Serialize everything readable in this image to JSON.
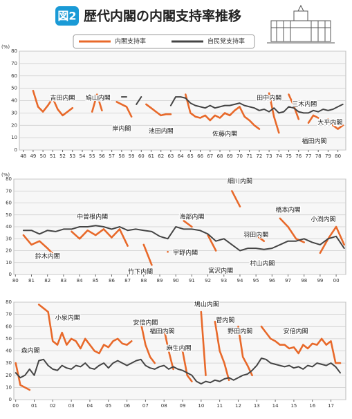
{
  "badge": "図2",
  "title": "歴代内閣の内閣支持率推移",
  "chart_data": [
    {
      "type": "line",
      "ylabel": "(%)",
      "xlim": [
        47.6,
        80.8
      ],
      "ylim": [
        0,
        80
      ],
      "yticks": [
        0,
        10,
        20,
        30,
        40,
        50,
        60,
        70,
        80
      ],
      "xticks": [
        48,
        49,
        50,
        51,
        52,
        53,
        54,
        55,
        56,
        57,
        58,
        59,
        60,
        61,
        62,
        63,
        64,
        65,
        66,
        67,
        68,
        69,
        70,
        71,
        72,
        73,
        74,
        75,
        76,
        77,
        78,
        79,
        80
      ],
      "grid": true,
      "x": [
        48.5,
        49,
        49.5,
        50,
        50.5,
        51,
        51.5,
        52,
        52.5,
        53,
        53.5,
        54,
        54.5,
        55,
        55.5,
        56,
        56.5,
        57,
        57.5,
        58,
        58.5,
        59,
        59.5,
        60,
        60.5,
        61,
        61.5,
        62,
        62.5,
        63,
        63.5,
        64,
        64.5,
        65,
        65.5,
        66,
        66.5,
        67,
        67.5,
        68,
        68.5,
        69,
        69.5,
        70,
        70.5,
        71,
        71.5,
        72,
        72.5,
        73,
        73.5,
        74,
        74.5,
        75,
        75.5,
        76,
        76.5,
        77,
        77.5,
        78,
        78.5,
        79,
        79.5,
        80,
        80.5
      ],
      "series": [
        {
          "name": "内閣支持率",
          "color": "#e8692a",
          "values": [
            null,
            48,
            35,
            31,
            36,
            42,
            33,
            28,
            31,
            34,
            null,
            null,
            null,
            31,
            45,
            32,
            null,
            null,
            39,
            37,
            35,
            27,
            null,
            null,
            37,
            34,
            31,
            28,
            29,
            29,
            null,
            null,
            45,
            30,
            27,
            26,
            28,
            24,
            28,
            26,
            30,
            28,
            32,
            35,
            27,
            24,
            20,
            17,
            null,
            46,
            27,
            14,
            null,
            45,
            36,
            25,
            null,
            22,
            28,
            26,
            null,
            25,
            20,
            17,
            20
          ]
        },
        {
          "name": "自民党支持率",
          "color": "#444444",
          "values": [
            null,
            null,
            null,
            null,
            null,
            null,
            null,
            null,
            null,
            null,
            null,
            null,
            null,
            null,
            null,
            null,
            null,
            null,
            null,
            43,
            43,
            null,
            37,
            43,
            null,
            null,
            null,
            null,
            null,
            36,
            43,
            43,
            42,
            38,
            36,
            35,
            34,
            36,
            34,
            35,
            36,
            36,
            37,
            38,
            36,
            35,
            34,
            32,
            33,
            31,
            34,
            30,
            31,
            35,
            34,
            31,
            30,
            30,
            32,
            31,
            33,
            32,
            33,
            35,
            37
          ]
        }
      ],
      "annotations": [
        {
          "text": "吉田内閣",
          "x": 52,
          "y": 42
        },
        {
          "text": "鳩山内閣",
          "x": 55.6,
          "y": 42
        },
        {
          "text": "岸内閣",
          "x": 58,
          "y": 17
        },
        {
          "text": "池田内閣",
          "x": 62,
          "y": 15
        },
        {
          "text": "佐藤内閣",
          "x": 68.5,
          "y": 13
        },
        {
          "text": "田中内閣",
          "x": 73,
          "y": 42
        },
        {
          "text": "三木内閣",
          "x": 76.6,
          "y": 37
        },
        {
          "text": "福田内閣",
          "x": 77.6,
          "y": 7
        },
        {
          "text": "大平内閣",
          "x": 79.2,
          "y": 22
        }
      ]
    },
    {
      "type": "line",
      "ylabel": "(%)",
      "xlim": [
        79.9,
        100.6
      ],
      "ylim": [
        0,
        80
      ],
      "yticks": [
        0,
        10,
        20,
        30,
        40,
        50,
        60,
        70,
        80
      ],
      "xticks": [
        80,
        81,
        82,
        83,
        84,
        85,
        86,
        87,
        88,
        89,
        90,
        91,
        92,
        93,
        94,
        95,
        96,
        97,
        98,
        99,
        {
          "value": 100,
          "label": "00"
        }
      ],
      "grid": true,
      "x": [
        80.5,
        81,
        81.5,
        82,
        82.5,
        83,
        83.5,
        84,
        84.5,
        85,
        85.5,
        86,
        86.5,
        87,
        87.5,
        88,
        88.5,
        89,
        89.5,
        90,
        90.5,
        91,
        91.5,
        92,
        92.5,
        93,
        93.5,
        94,
        94.5,
        95,
        95.5,
        96,
        96.5,
        97,
        97.5,
        98,
        98.5,
        99,
        99.5,
        100,
        100.5
      ],
      "series": [
        {
          "color": "#e8692a",
          "values": [
            33,
            25,
            28,
            22,
            15,
            null,
            36,
            30,
            37,
            33,
            38,
            31,
            38,
            24,
            null,
            25,
            8,
            null,
            19,
            null,
            45,
            40,
            null,
            33,
            20,
            null,
            70,
            57,
            null,
            33,
            28,
            null,
            47,
            40,
            30,
            27,
            null,
            18,
            30,
            40,
            25
          ]
        },
        {
          "color": "#444444",
          "values": [
            37,
            37,
            34,
            37,
            36,
            38,
            38,
            40,
            40,
            41,
            40,
            38,
            40,
            37,
            38,
            37,
            36,
            32,
            30,
            40,
            38,
            38,
            37,
            34,
            28,
            30,
            25,
            20,
            22,
            22,
            21,
            22,
            25,
            28,
            28,
            30,
            27,
            25,
            30,
            32,
            22
          ]
        }
      ],
      "annotations": [
        {
          "text": "鈴木内閣",
          "x": 82,
          "y": 15
        },
        {
          "text": "中曽根内閣",
          "x": 84.8,
          "y": 48
        },
        {
          "text": "竹下内閣",
          "x": 87.8,
          "y": 2
        },
        {
          "text": "宇野内閣",
          "x": 90.6,
          "y": 18
        },
        {
          "text": "海部内閣",
          "x": 91,
          "y": 48
        },
        {
          "text": "宮沢内閣",
          "x": 92.8,
          "y": 3
        },
        {
          "text": "細川内閣",
          "x": 94,
          "y": 78
        },
        {
          "text": "羽田内閣",
          "x": 95,
          "y": 33
        },
        {
          "text": "村山内閣",
          "x": 95.4,
          "y": 9
        },
        {
          "text": "橋本内閣",
          "x": 97,
          "y": 54
        },
        {
          "text": "小渕内閣",
          "x": 99.2,
          "y": 46
        }
      ]
    },
    {
      "type": "line",
      "ylim": [
        0,
        80
      ],
      "xlim": [
        -0.1,
        17.8
      ],
      "yticks": [
        0,
        10,
        20,
        30,
        40,
        50,
        60,
        70,
        80
      ],
      "xticks": [
        {
          "value": 0,
          "label": "00"
        },
        {
          "value": 1,
          "label": "01"
        },
        {
          "value": 2,
          "label": "02"
        },
        {
          "value": 3,
          "label": "03"
        },
        {
          "value": 4,
          "label": "04"
        },
        {
          "value": 5,
          "label": "05"
        },
        {
          "value": 6,
          "label": "06"
        },
        {
          "value": 7,
          "label": "07"
        },
        {
          "value": 8,
          "label": "08"
        },
        {
          "value": 9,
          "label": "09"
        },
        10,
        11,
        12,
        13,
        14,
        15,
        16,
        17
      ],
      "grid": true,
      "x": [
        0,
        0.25,
        0.5,
        0.75,
        1,
        1.25,
        1.5,
        1.75,
        2,
        2.25,
        2.5,
        2.75,
        3,
        3.25,
        3.5,
        3.75,
        4,
        4.25,
        4.5,
        4.75,
        5,
        5.25,
        5.5,
        5.75,
        6,
        6.25,
        6.5,
        6.75,
        7,
        7.25,
        7.5,
        7.75,
        8,
        8.25,
        8.5,
        8.75,
        9,
        9.25,
        9.5,
        9.75,
        10,
        10.25,
        10.5,
        10.75,
        11,
        11.25,
        11.5,
        11.75,
        12,
        12.25,
        12.5,
        12.75,
        13,
        13.25,
        13.5,
        13.75,
        14,
        14.25,
        14.5,
        14.75,
        15,
        15.25,
        15.5,
        15.75,
        16,
        16.25,
        16.5,
        16.75,
        17,
        17.25,
        17.5
      ],
      "series": [
        {
          "color": "#e8692a",
          "values": [
            30,
            12,
            10,
            8,
            null,
            78,
            75,
            72,
            48,
            45,
            55,
            45,
            50,
            48,
            42,
            50,
            45,
            40,
            38,
            45,
            43,
            48,
            50,
            46,
            45,
            48,
            null,
            63,
            45,
            35,
            30,
            null,
            58,
            40,
            25,
            null,
            40,
            20,
            15,
            null,
            72,
            20,
            null,
            64,
            40,
            30,
            16,
            null,
            60,
            35,
            28,
            20,
            null,
            60,
            55,
            50,
            48,
            45,
            45,
            42,
            43,
            38,
            45,
            42,
            46,
            45,
            50,
            45,
            48,
            30,
            30
          ]
        },
        {
          "color": "#444444",
          "values": [
            22,
            18,
            20,
            25,
            20,
            32,
            33,
            28,
            25,
            24,
            28,
            26,
            25,
            28,
            27,
            30,
            26,
            25,
            28,
            30,
            26,
            30,
            32,
            30,
            28,
            30,
            32,
            33,
            28,
            26,
            25,
            27,
            28,
            25,
            27,
            25,
            24,
            22,
            20,
            15,
            13,
            15,
            14,
            16,
            15,
            17,
            18,
            16,
            18,
            20,
            21,
            24,
            28,
            34,
            33,
            30,
            29,
            28,
            27,
            28,
            26,
            27,
            25,
            28,
            27,
            30,
            29,
            28,
            30,
            27,
            22
          ]
        }
      ],
      "annotations": [
        {
          "text": "森内閣",
          "x": 0.8,
          "y": 40
        },
        {
          "text": "小泉内閣",
          "x": 2.8,
          "y": 67
        },
        {
          "text": "安倍内閣",
          "x": 7,
          "y": 63
        },
        {
          "text": "福田内閣",
          "x": 7.9,
          "y": 56
        },
        {
          "text": "麻生内閣",
          "x": 8.8,
          "y": 42
        },
        {
          "text": "鳩山内閣",
          "x": 10.3,
          "y": 78
        },
        {
          "text": "菅内閣",
          "x": 11.3,
          "y": 65
        },
        {
          "text": "野田内閣",
          "x": 12.1,
          "y": 56
        },
        {
          "text": "安倍内閣",
          "x": 15.1,
          "y": 56
        }
      ]
    }
  ]
}
